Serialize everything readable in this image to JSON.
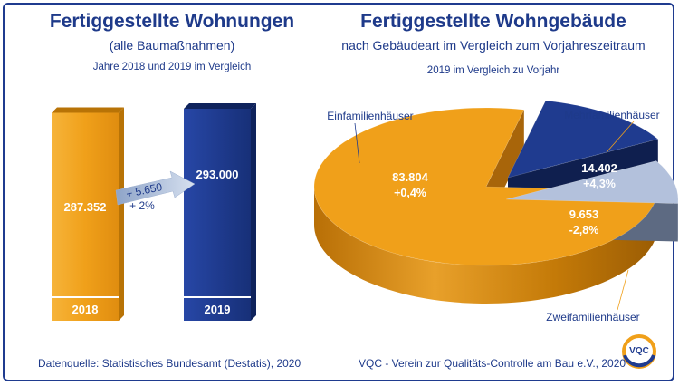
{
  "left": {
    "title": "Fertiggestellte Wohnungen",
    "subtitle": "(alle Baumaßnahmen)",
    "subtitle2": "Jahre 2018 und 2019 im Vergleich"
  },
  "right": {
    "title": "Fertiggestellte Wohngebäude",
    "subtitle": "nach Gebäudeart im Vergleich zum Vorjahreszeitraum",
    "subtitle2": "2019 im Vergleich zu Vorjahr"
  },
  "footer": {
    "source": "Datenquelle: Statistisches Bundesamt (Destatis), 2020",
    "org": "VQC - Verein zur Qualitäts-Controlle am Bau e.V., 2020"
  },
  "logo": {
    "text": "VQC"
  },
  "colors": {
    "orange": "#f0a01a",
    "navy": "#1f3b8f",
    "light_blue": "#b3c1dc",
    "text": "#1e3a8a"
  },
  "chart_data": [
    {
      "type": "bar",
      "categories": [
        "2018",
        "2019"
      ],
      "values": [
        287352,
        293000
      ],
      "value_labels": [
        "287.352",
        "293.000"
      ],
      "colors": [
        "#f0a01a",
        "#1f3b8f"
      ],
      "annotation": {
        "change_abs": "+ 5.650",
        "change_pct": "+ 2%"
      }
    },
    {
      "type": "pie",
      "style": "3d-exploded",
      "slices": [
        {
          "label": "Einfamilienhäuser",
          "value": 83804,
          "value_label": "83.804",
          "change": "+0,4%",
          "color": "#f0a01a"
        },
        {
          "label": "Mehrfamilienhäuser",
          "value": 14402,
          "value_label": "14.402",
          "change": "+4,3%",
          "color": "#1f3b8f"
        },
        {
          "label": "Zweifamilienhäuser",
          "value": 9653,
          "value_label": "9.653",
          "change": "-2,8%",
          "color": "#b3c1dc"
        }
      ]
    }
  ]
}
